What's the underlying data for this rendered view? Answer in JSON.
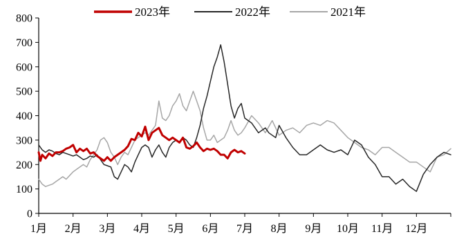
{
  "chart_data": {
    "type": "line",
    "title": "",
    "xlabel": "",
    "ylabel": "",
    "ylim": [
      0,
      800
    ],
    "yticks": [
      0,
      100,
      200,
      300,
      400,
      500,
      600,
      700,
      800
    ],
    "xlim": [
      1,
      13
    ],
    "xtick_labels": [
      "1月",
      "2月",
      "3月",
      "4月",
      "5月",
      "6月",
      "7月",
      "8月",
      "9月",
      "10月",
      "11月",
      "12月"
    ],
    "grid": false,
    "legend_position": "top",
    "series": [
      {
        "name": "2023年",
        "color": "#c00000",
        "line_width": 3,
        "x": [
          1.0,
          1.05,
          1.1,
          1.2,
          1.3,
          1.4,
          1.5,
          1.6,
          1.7,
          1.8,
          1.9,
          2.0,
          2.1,
          2.2,
          2.3,
          2.4,
          2.5,
          2.6,
          2.7,
          2.8,
          2.9,
          3.0,
          3.1,
          3.2,
          3.3,
          3.4,
          3.5,
          3.6,
          3.7,
          3.8,
          3.9,
          4.0,
          4.1,
          4.2,
          4.3,
          4.4,
          4.5,
          4.6,
          4.7,
          4.8,
          4.9,
          5.0,
          5.1,
          5.2,
          5.3,
          5.4,
          5.5,
          5.6,
          5.7,
          5.8,
          5.9,
          6.0,
          6.1,
          6.2,
          6.3,
          6.4,
          6.5,
          6.6,
          6.7,
          6.8,
          6.9,
          7.0
        ],
        "values": [
          250,
          215,
          240,
          225,
          245,
          235,
          250,
          250,
          255,
          265,
          270,
          280,
          250,
          265,
          255,
          265,
          245,
          250,
          235,
          225,
          215,
          230,
          215,
          230,
          240,
          250,
          260,
          275,
          305,
          300,
          330,
          315,
          355,
          300,
          330,
          340,
          350,
          320,
          310,
          300,
          310,
          300,
          290,
          310,
          270,
          265,
          275,
          290,
          270,
          255,
          265,
          260,
          265,
          255,
          240,
          240,
          225,
          250,
          260,
          250,
          255,
          245
        ]
      },
      {
        "name": "2022年",
        "color": "#262626",
        "line_width": 1.5,
        "x": [
          1.0,
          1.1,
          1.2,
          1.3,
          1.4,
          1.5,
          1.6,
          1.7,
          1.8,
          1.9,
          2.0,
          2.1,
          2.2,
          2.3,
          2.4,
          2.5,
          2.6,
          2.7,
          2.8,
          2.9,
          3.0,
          3.1,
          3.2,
          3.3,
          3.4,
          3.5,
          3.6,
          3.7,
          3.8,
          3.9,
          4.0,
          4.1,
          4.2,
          4.3,
          4.4,
          4.5,
          4.6,
          4.7,
          4.8,
          4.9,
          5.0,
          5.1,
          5.2,
          5.3,
          5.4,
          5.5,
          5.6,
          5.7,
          5.8,
          5.9,
          6.0,
          6.1,
          6.2,
          6.3,
          6.4,
          6.5,
          6.6,
          6.7,
          6.8,
          6.9,
          7.0,
          7.1,
          7.2,
          7.3,
          7.4,
          7.5,
          7.6,
          7.7,
          7.8,
          7.9,
          8.0,
          8.2,
          8.4,
          8.6,
          8.8,
          9.0,
          9.2,
          9.4,
          9.6,
          9.8,
          10.0,
          10.2,
          10.4,
          10.6,
          10.8,
          11.0,
          11.2,
          11.4,
          11.6,
          11.8,
          12.0,
          12.2,
          12.4,
          12.6,
          12.8,
          13.0
        ],
        "values": [
          280,
          260,
          250,
          260,
          255,
          245,
          240,
          250,
          245,
          240,
          235,
          240,
          230,
          220,
          225,
          235,
          230,
          240,
          220,
          200,
          195,
          190,
          150,
          140,
          170,
          200,
          190,
          170,
          210,
          240,
          270,
          280,
          270,
          230,
          260,
          280,
          250,
          230,
          270,
          290,
          300,
          290,
          310,
          300,
          280,
          270,
          310,
          360,
          430,
          480,
          540,
          600,
          640,
          690,
          620,
          530,
          440,
          390,
          430,
          450,
          390,
          380,
          370,
          350,
          330,
          340,
          350,
          330,
          320,
          310,
          360,
          310,
          270,
          240,
          240,
          260,
          280,
          260,
          250,
          260,
          240,
          300,
          280,
          230,
          200,
          150,
          150,
          120,
          140,
          110,
          90,
          160,
          200,
          230,
          250,
          240
        ]
      },
      {
        "name": "2021年",
        "color": "#a6a6a6",
        "line_width": 1.5,
        "x": [
          1.0,
          1.1,
          1.2,
          1.3,
          1.4,
          1.5,
          1.6,
          1.7,
          1.8,
          1.9,
          2.0,
          2.1,
          2.2,
          2.3,
          2.4,
          2.5,
          2.6,
          2.7,
          2.8,
          2.9,
          3.0,
          3.1,
          3.2,
          3.3,
          3.4,
          3.5,
          3.6,
          3.7,
          3.8,
          3.9,
          4.0,
          4.1,
          4.2,
          4.3,
          4.4,
          4.5,
          4.6,
          4.7,
          4.8,
          4.9,
          5.0,
          5.1,
          5.2,
          5.3,
          5.4,
          5.5,
          5.6,
          5.7,
          5.8,
          5.9,
          6.0,
          6.1,
          6.2,
          6.3,
          6.4,
          6.5,
          6.6,
          6.7,
          6.8,
          6.9,
          7.0,
          7.2,
          7.4,
          7.6,
          7.8,
          8.0,
          8.2,
          8.4,
          8.6,
          8.8,
          9.0,
          9.2,
          9.4,
          9.6,
          9.8,
          10.0,
          10.2,
          10.4,
          10.6,
          10.8,
          11.0,
          11.2,
          11.4,
          11.6,
          11.8,
          12.0,
          12.2,
          12.4,
          12.6,
          12.8,
          13.0
        ],
        "values": [
          140,
          120,
          110,
          115,
          120,
          130,
          140,
          150,
          140,
          155,
          170,
          180,
          190,
          200,
          190,
          220,
          240,
          260,
          300,
          310,
          290,
          250,
          230,
          200,
          230,
          250,
          240,
          270,
          300,
          310,
          320,
          330,
          320,
          340,
          360,
          460,
          390,
          380,
          400,
          440,
          460,
          490,
          440,
          420,
          460,
          500,
          460,
          420,
          350,
          300,
          300,
          320,
          290,
          300,
          310,
          340,
          380,
          340,
          320,
          330,
          350,
          400,
          370,
          330,
          380,
          320,
          340,
          350,
          330,
          360,
          370,
          360,
          380,
          370,
          340,
          310,
          290,
          270,
          260,
          240,
          270,
          270,
          250,
          230,
          210,
          210,
          190,
          170,
          230,
          240,
          265
        ]
      }
    ]
  }
}
